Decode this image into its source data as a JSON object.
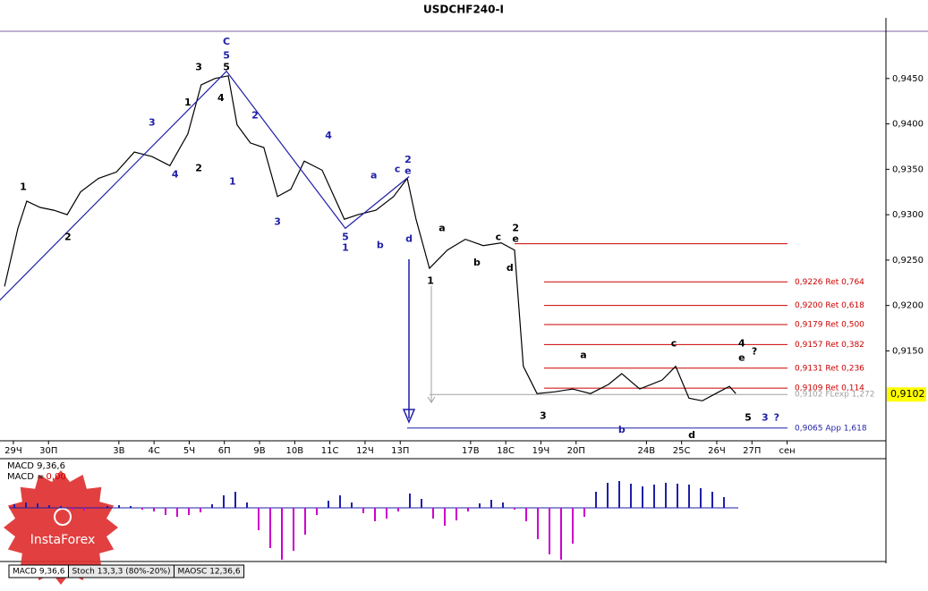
{
  "chart_data": [
    {
      "type": "line",
      "title": "USDCHF240-I",
      "xlim": [
        -0.38,
        24.81
      ],
      "ylim": [
        0.9051,
        0.9502
      ],
      "xticks": [
        {
          "value": 0,
          "label": "29Ч"
        },
        {
          "value": 1,
          "label": "30П"
        },
        {
          "value": 3,
          "label": "3В"
        },
        {
          "value": 4,
          "label": "4С"
        },
        {
          "value": 5,
          "label": "5Ч"
        },
        {
          "value": 6,
          "label": "6П"
        },
        {
          "value": 7,
          "label": "9В"
        },
        {
          "value": 8,
          "label": "10В"
        },
        {
          "value": 9,
          "label": "11С"
        },
        {
          "value": 10,
          "label": "12Ч"
        },
        {
          "value": 11,
          "label": "13П"
        },
        {
          "value": 13,
          "label": "17В"
        },
        {
          "value": 14,
          "label": "18С"
        },
        {
          "value": 15,
          "label": "19Ч"
        },
        {
          "value": 16,
          "label": "20П"
        },
        {
          "value": 18,
          "label": "24В"
        },
        {
          "value": 19,
          "label": "25С"
        },
        {
          "value": 20,
          "label": "26Ч"
        },
        {
          "value": 21,
          "label": "27П"
        },
        {
          "value": 22,
          "label": "сен"
        }
      ],
      "yticks": [
        {
          "value": 0.945,
          "label": "0,9450"
        },
        {
          "value": 0.94,
          "label": "0,9400"
        },
        {
          "value": 0.935,
          "label": "0,9350"
        },
        {
          "value": 0.93,
          "label": "0,9300"
        },
        {
          "value": 0.925,
          "label": "0,9250"
        },
        {
          "value": 0.92,
          "label": "0,9200"
        },
        {
          "value": 0.915,
          "label": "0,9150"
        }
      ],
      "series": [
        {
          "color": "#000000",
          "x": [
            -0.25,
            0.13,
            0.38,
            0.76,
            1.15,
            1.53,
            1.91,
            2.42,
            2.93,
            3.44,
            3.94,
            4.45,
            4.96,
            5.34,
            5.73,
            6.11,
            6.36,
            6.74,
            7.12,
            7.51,
            7.89,
            8.27,
            8.78,
            9.41,
            9.8,
            10.31,
            10.81,
            11.2,
            11.45,
            11.83,
            12.34,
            12.85,
            13.36,
            13.87,
            14.25,
            14.5,
            14.89,
            15.4,
            15.9,
            16.41,
            16.92,
            17.3,
            17.81,
            18.45,
            18.83,
            19.21,
            19.59,
            19.97,
            20.36,
            20.54
          ],
          "values": [
            0.9221,
            0.9285,
            0.9315,
            0.9308,
            0.9305,
            0.93,
            0.9325,
            0.934,
            0.9347,
            0.9369,
            0.9364,
            0.9354,
            0.9389,
            0.9443,
            0.945,
            0.9453,
            0.9399,
            0.9379,
            0.9374,
            0.932,
            0.9328,
            0.9359,
            0.9349,
            0.9295,
            0.93,
            0.9305,
            0.932,
            0.934,
            0.9295,
            0.9241,
            0.9261,
            0.9273,
            0.9266,
            0.9269,
            0.9261,
            0.9133,
            0.9103,
            0.9105,
            0.9108,
            0.9103,
            0.9113,
            0.9125,
            0.9108,
            0.9118,
            0.9133,
            0.9098,
            0.9095,
            0.9103,
            0.9111,
            0.9103
          ]
        },
        {
          "color": "#1f1fa8",
          "x": [
            -0.38,
            6.06,
            9.44,
            11.25
          ],
          "values": [
            0.9206,
            0.9458,
            0.9285,
            0.9342
          ]
        }
      ],
      "levels": [
        {
          "value": 0.9268,
          "color": "#cc0000"
        },
        {
          "value": 0.9226,
          "label": "0,9226 Ret 0,764",
          "color": "#cc0000"
        },
        {
          "value": 0.92,
          "label": "0,9200 Ret 0,618",
          "color": "#cc0000"
        },
        {
          "value": 0.9179,
          "label": "0,9179 Ret 0,500",
          "color": "#cc0000"
        },
        {
          "value": 0.9157,
          "label": "0,9157 Ret 0,382",
          "color": "#cc0000"
        },
        {
          "value": 0.9131,
          "label": "0,9131 Ret 0,236",
          "color": "#cc0000"
        },
        {
          "value": 0.9109,
          "label": "0,9109 Ret 0,114",
          "color": "#cc0000"
        },
        {
          "value": 0.9102,
          "label": "0,9102 FLexp 1,272",
          "color": "#a0a0a0"
        },
        {
          "value": 0.9065,
          "label": "0,9065 App 1,618",
          "color": "#1f1fa8"
        }
      ],
      "last_price": {
        "value": 0.9102,
        "label": "0,9102"
      },
      "wave_labels": [
        {
          "text": "C",
          "x": 6.06,
          "y": 0.949,
          "color": "#1f1fa8"
        },
        {
          "text": "5",
          "x": 6.06,
          "y": 0.9475,
          "color": "#1f1fa8"
        },
        {
          "text": "3",
          "x": 5.27,
          "y": 0.9462,
          "color": "#000000"
        },
        {
          "text": "5",
          "x": 6.06,
          "y": 0.9462,
          "color": "#000000"
        },
        {
          "text": "4",
          "x": 5.9,
          "y": 0.9428,
          "color": "#000000"
        },
        {
          "text": "1",
          "x": 4.96,
          "y": 0.9423,
          "color": "#000000"
        },
        {
          "text": "2",
          "x": 5.27,
          "y": 0.9351,
          "color": "#000000"
        },
        {
          "text": "1",
          "x": 6.23,
          "y": 0.9336,
          "color": "#1f1fa8"
        },
        {
          "text": "2",
          "x": 6.87,
          "y": 0.9409,
          "color": "#1f1fa8"
        },
        {
          "text": "3",
          "x": 7.51,
          "y": 0.9292,
          "color": "#1f1fa8"
        },
        {
          "text": "4",
          "x": 8.96,
          "y": 0.9387,
          "color": "#1f1fa8"
        },
        {
          "text": "5",
          "x": 9.44,
          "y": 0.9275,
          "color": "#1f1fa8"
        },
        {
          "text": "1",
          "x": 9.44,
          "y": 0.9263,
          "color": "#1f1fa8"
        },
        {
          "text": "3",
          "x": 3.94,
          "y": 0.9401,
          "color": "#1f1fa8"
        },
        {
          "text": "4",
          "x": 4.6,
          "y": 0.9344,
          "color": "#1f1fa8"
        },
        {
          "text": "1",
          "x": 0.28,
          "y": 0.933,
          "color": "#000000"
        },
        {
          "text": "2",
          "x": 1.55,
          "y": 0.9275,
          "color": "#000000"
        },
        {
          "text": "a",
          "x": 10.25,
          "y": 0.9343,
          "color": "#1f1fa8"
        },
        {
          "text": "b",
          "x": 10.43,
          "y": 0.9266,
          "color": "#1f1fa8"
        },
        {
          "text": "c",
          "x": 10.92,
          "y": 0.935,
          "color": "#1f1fa8"
        },
        {
          "text": "2",
          "x": 11.22,
          "y": 0.936,
          "color": "#1f1fa8"
        },
        {
          "text": "e",
          "x": 11.22,
          "y": 0.9348,
          "color": "#1f1fa8"
        },
        {
          "text": "d",
          "x": 11.25,
          "y": 0.9273,
          "color": "#1f1fa8"
        },
        {
          "text": "1",
          "x": 11.86,
          "y": 0.9227,
          "color": "#000000"
        },
        {
          "text": "a",
          "x": 12.19,
          "y": 0.9285,
          "color": "#000000"
        },
        {
          "text": "b",
          "x": 13.18,
          "y": 0.9247,
          "color": "#000000"
        },
        {
          "text": "c",
          "x": 13.79,
          "y": 0.9275,
          "color": "#000000"
        },
        {
          "text": "2",
          "x": 14.28,
          "y": 0.9285,
          "color": "#000000"
        },
        {
          "text": "e",
          "x": 14.28,
          "y": 0.9273,
          "color": "#000000"
        },
        {
          "text": "d",
          "x": 14.12,
          "y": 0.9241,
          "color": "#000000"
        },
        {
          "text": "3",
          "x": 15.06,
          "y": 0.9078,
          "color": "#000000"
        },
        {
          "text": "a",
          "x": 16.21,
          "y": 0.9145,
          "color": "#000000"
        },
        {
          "text": "b",
          "x": 17.3,
          "y": 0.9063,
          "color": "#1f1fa8"
        },
        {
          "text": "c",
          "x": 18.78,
          "y": 0.9158,
          "color": "#000000"
        },
        {
          "text": "d",
          "x": 19.29,
          "y": 0.9057,
          "color": "#000000"
        },
        {
          "text": "4",
          "x": 20.71,
          "y": 0.9158,
          "color": "#000000"
        },
        {
          "text": "e",
          "x": 20.71,
          "y": 0.9142,
          "color": "#000000"
        },
        {
          "text": "?",
          "x": 21.07,
          "y": 0.9149,
          "color": "#000000"
        },
        {
          "text": "5",
          "x": 20.89,
          "y": 0.9076,
          "color": "#000000"
        },
        {
          "text": "3",
          "x": 21.37,
          "y": 0.9076,
          "color": "#1f1fa8"
        },
        {
          "text": "?",
          "x": 21.7,
          "y": 0.9076,
          "color": "#1f1fa8"
        }
      ]
    },
    {
      "type": "bar",
      "title": "MACD 9,36,6",
      "value_label": "MACD =",
      "value_text": "0,00",
      "ylim": [
        -60,
        55
      ],
      "pos_color": "#1f1fa8",
      "neg_color": "#cc00cc",
      "values": [
        4,
        6,
        5,
        3,
        2,
        -2,
        -3,
        -1,
        2,
        3,
        2,
        -2,
        -4,
        -8,
        -10,
        -8,
        -5,
        4,
        14,
        18,
        6,
        -25,
        -45,
        -58,
        -48,
        -30,
        -8,
        8,
        14,
        6,
        -6,
        -15,
        -12,
        -4,
        16,
        10,
        -12,
        -20,
        -14,
        -4,
        5,
        9,
        6,
        -2,
        -15,
        -35,
        -52,
        -58,
        -40,
        -10,
        18,
        28,
        30,
        27,
        24,
        26,
        28,
        27,
        26,
        22,
        18,
        12
      ]
    }
  ],
  "tabs": [
    "MACD 9,36,6",
    "Stoch 13,3,3 (80%-20%)",
    "MAOSC 12,36,6"
  ],
  "logo": "InstaForex"
}
